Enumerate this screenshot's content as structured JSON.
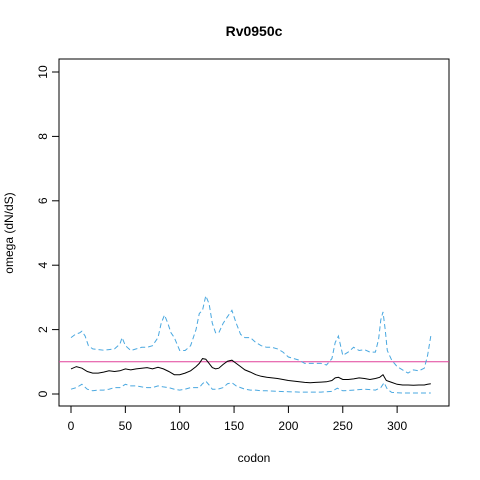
{
  "chart_data": {
    "type": "line",
    "title": "Rv0950c",
    "xlabel": "codon",
    "ylabel": "omega (dN/dS)",
    "xlim": [
      0,
      333
    ],
    "ylim": [
      0,
      10
    ],
    "xticks": [
      "0",
      "50",
      "100",
      "150",
      "200",
      "250",
      "300"
    ],
    "yticks": [
      "0",
      "2",
      "4",
      "6",
      "8",
      "10"
    ],
    "reference_line": {
      "y": 1,
      "color": "#e0409a"
    },
    "grid": false,
    "legend": "none",
    "series": [
      {
        "role": "estimate",
        "color": "#000000",
        "dash": "solid",
        "x": [
          0,
          5,
          10,
          15,
          20,
          25,
          30,
          35,
          40,
          45,
          50,
          55,
          60,
          65,
          70,
          75,
          80,
          85,
          90,
          95,
          100,
          105,
          110,
          115,
          118,
          121,
          124,
          127,
          130,
          133,
          136,
          140,
          144,
          148,
          152,
          156,
          160,
          165,
          170,
          175,
          180,
          185,
          190,
          195,
          200,
          205,
          210,
          215,
          220,
          225,
          230,
          235,
          240,
          243,
          246,
          250,
          255,
          260,
          265,
          270,
          275,
          280,
          284,
          287,
          290,
          295,
          300,
          305,
          310,
          315,
          320,
          325,
          328,
          331
        ],
        "values": [
          0.78,
          0.85,
          0.8,
          0.7,
          0.65,
          0.65,
          0.68,
          0.72,
          0.7,
          0.72,
          0.78,
          0.75,
          0.78,
          0.8,
          0.82,
          0.78,
          0.83,
          0.78,
          0.7,
          0.6,
          0.6,
          0.65,
          0.72,
          0.85,
          0.95,
          1.1,
          1.08,
          0.95,
          0.82,
          0.78,
          0.8,
          0.92,
          1.02,
          1.05,
          0.95,
          0.85,
          0.75,
          0.68,
          0.6,
          0.55,
          0.52,
          0.5,
          0.48,
          0.45,
          0.42,
          0.4,
          0.38,
          0.36,
          0.35,
          0.36,
          0.37,
          0.38,
          0.42,
          0.5,
          0.52,
          0.45,
          0.45,
          0.47,
          0.5,
          0.48,
          0.45,
          0.48,
          0.52,
          0.6,
          0.42,
          0.36,
          0.3,
          0.28,
          0.28,
          0.27,
          0.28,
          0.28,
          0.3,
          0.32
        ]
      },
      {
        "role": "upper bound",
        "color": "#4aa8e0",
        "dash": "dashed",
        "x": [
          0,
          4,
          8,
          10,
          13,
          16,
          20,
          25,
          30,
          35,
          40,
          45,
          47,
          50,
          55,
          60,
          65,
          70,
          75,
          80,
          83,
          86,
          89,
          92,
          95,
          100,
          105,
          110,
          115,
          118,
          121,
          124,
          127,
          130,
          133,
          136,
          140,
          144,
          148,
          152,
          156,
          160,
          165,
          170,
          175,
          180,
          185,
          190,
          195,
          200,
          205,
          210,
          215,
          220,
          225,
          230,
          235,
          240,
          243,
          246,
          250,
          255,
          260,
          265,
          270,
          275,
          280,
          283,
          285,
          287,
          289,
          291,
          295,
          300,
          305,
          310,
          315,
          320,
          325,
          328,
          331
        ],
        "values": [
          1.75,
          1.85,
          1.9,
          1.95,
          1.8,
          1.5,
          1.4,
          1.38,
          1.36,
          1.38,
          1.4,
          1.55,
          1.75,
          1.5,
          1.35,
          1.4,
          1.45,
          1.45,
          1.5,
          1.75,
          2.2,
          2.45,
          2.2,
          1.9,
          1.75,
          1.35,
          1.35,
          1.5,
          2.0,
          2.5,
          2.6,
          3.05,
          2.8,
          2.2,
          1.9,
          1.9,
          2.2,
          2.4,
          2.6,
          2.2,
          1.85,
          1.75,
          1.75,
          1.6,
          1.5,
          1.45,
          1.45,
          1.4,
          1.3,
          1.15,
          1.1,
          1.05,
          0.95,
          0.95,
          0.95,
          0.95,
          0.9,
          1.1,
          1.6,
          1.8,
          1.2,
          1.3,
          1.45,
          1.35,
          1.38,
          1.3,
          1.3,
          1.7,
          2.3,
          2.55,
          2.0,
          1.35,
          1.05,
          0.85,
          0.75,
          0.65,
          0.75,
          0.72,
          0.8,
          1.2,
          1.8
        ]
      },
      {
        "role": "lower bound",
        "color": "#4aa8e0",
        "dash": "dashed",
        "x": [
          0,
          5,
          10,
          15,
          20,
          25,
          30,
          35,
          40,
          45,
          50,
          55,
          60,
          65,
          70,
          75,
          80,
          85,
          90,
          95,
          100,
          105,
          110,
          115,
          118,
          121,
          124,
          127,
          130,
          135,
          140,
          144,
          148,
          152,
          156,
          160,
          165,
          170,
          175,
          180,
          190,
          200,
          210,
          220,
          230,
          240,
          245,
          250,
          260,
          270,
          280,
          285,
          288,
          291,
          295,
          300,
          305,
          310,
          315,
          320,
          325,
          331
        ],
        "values": [
          0.15,
          0.2,
          0.3,
          0.15,
          0.1,
          0.12,
          0.12,
          0.15,
          0.2,
          0.2,
          0.3,
          0.25,
          0.25,
          0.22,
          0.2,
          0.2,
          0.25,
          0.22,
          0.2,
          0.15,
          0.12,
          0.15,
          0.2,
          0.2,
          0.2,
          0.32,
          0.4,
          0.28,
          0.15,
          0.15,
          0.2,
          0.32,
          0.35,
          0.25,
          0.2,
          0.15,
          0.12,
          0.12,
          0.1,
          0.1,
          0.08,
          0.07,
          0.06,
          0.06,
          0.06,
          0.08,
          0.18,
          0.1,
          0.12,
          0.15,
          0.12,
          0.2,
          0.35,
          0.15,
          0.05,
          0.04,
          0.03,
          0.03,
          0.03,
          0.03,
          0.03,
          0.03
        ]
      }
    ]
  }
}
